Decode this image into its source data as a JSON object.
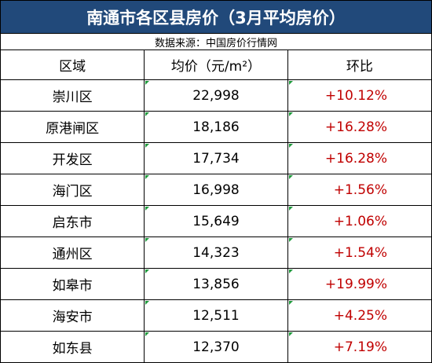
{
  "title": "南通市各区县房价（3月平均房价）",
  "source": "数据来源：中国房价行情网",
  "columns": [
    "区域",
    "均价（元/m²）",
    "环比"
  ],
  "rows": [
    [
      "崇川区",
      "22,998",
      "+10.12%"
    ],
    [
      "原港闸区",
      "18,186",
      "+16.28%"
    ],
    [
      "开发区",
      "17,734",
      "+16.28%"
    ],
    [
      "海门区",
      "16,998",
      "+1.56%"
    ],
    [
      "启东市",
      "15,649",
      "+1.06%"
    ],
    [
      "通州区",
      "14,323",
      "+1.54%"
    ],
    [
      "如皋市",
      "13,856",
      "+19.99%"
    ],
    [
      "海安市",
      "12,511",
      "+4.25%"
    ],
    [
      "如东县",
      "12,370",
      "+7.19%"
    ]
  ]
}
